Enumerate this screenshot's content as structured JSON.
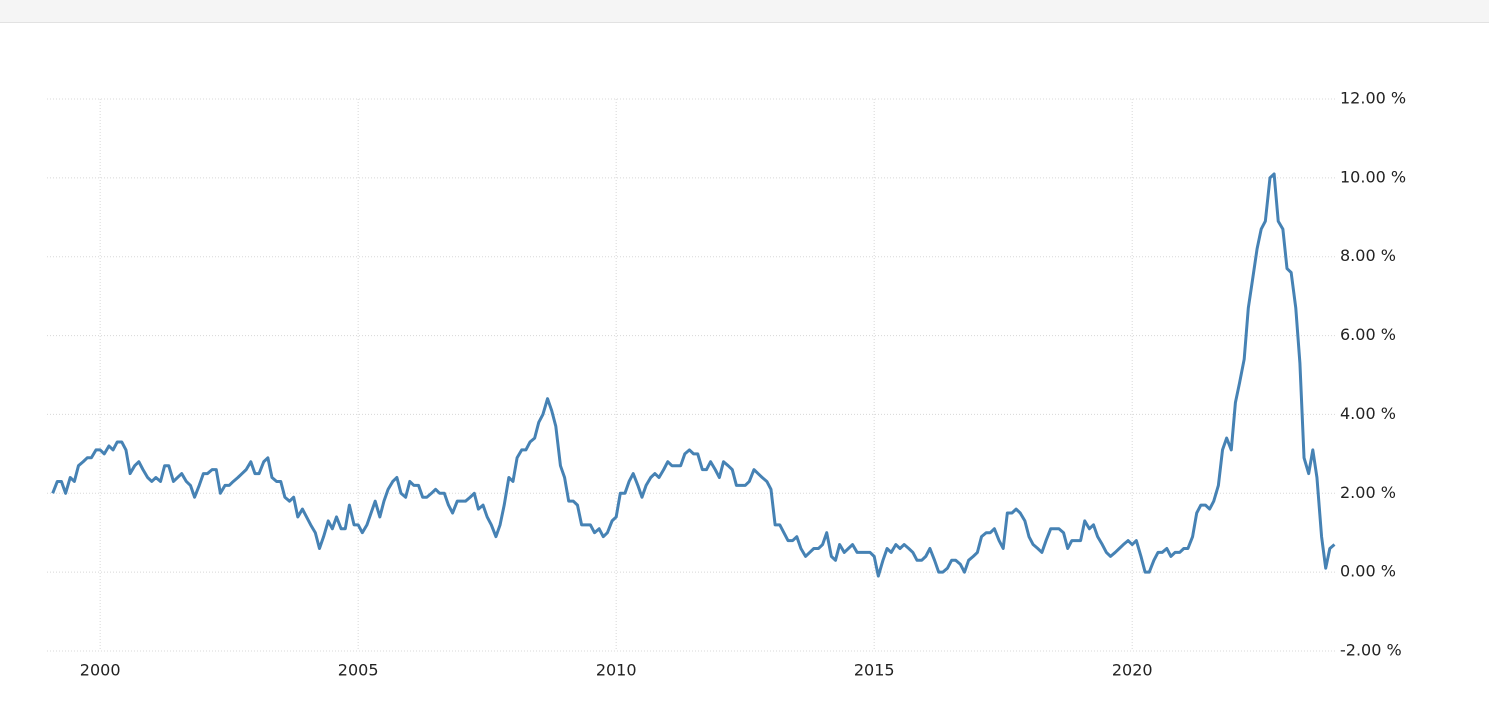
{
  "chart_data": {
    "type": "line",
    "color": "#4682b4",
    "grid": true,
    "xlim": [
      1998.97,
      2023.93
    ],
    "xticks": [
      2000,
      2005,
      2010,
      2015,
      2020
    ],
    "ylim": [
      -2,
      12
    ],
    "yticks": [
      {
        "value": -2,
        "label": "-2.00 %"
      },
      {
        "value": 0,
        "label": "0.00 %"
      },
      {
        "value": 2,
        "label": "2.00 %"
      },
      {
        "value": 4,
        "label": "4.00 %"
      },
      {
        "value": 6,
        "label": "6.00 %"
      },
      {
        "value": 8,
        "label": "8.00 %"
      },
      {
        "value": 10,
        "label": "10.00 %"
      },
      {
        "value": 12,
        "label": "12.00 %"
      }
    ],
    "x": [
      1999.08,
      1999.17,
      1999.25,
      1999.33,
      1999.42,
      1999.5,
      1999.58,
      1999.67,
      1999.75,
      1999.83,
      1999.92,
      2000,
      2000.08,
      2000.17,
      2000.25,
      2000.33,
      2000.42,
      2000.5,
      2000.58,
      2000.67,
      2000.75,
      2000.83,
      2000.92,
      2001,
      2001.08,
      2001.17,
      2001.25,
      2001.33,
      2001.42,
      2001.5,
      2001.58,
      2001.67,
      2001.75,
      2001.83,
      2001.92,
      2002,
      2002.08,
      2002.17,
      2002.25,
      2002.33,
      2002.42,
      2002.5,
      2002.58,
      2002.67,
      2002.75,
      2002.83,
      2002.92,
      2003,
      2003.08,
      2003.17,
      2003.25,
      2003.33,
      2003.42,
      2003.5,
      2003.58,
      2003.67,
      2003.75,
      2003.83,
      2003.92,
      2004,
      2004.08,
      2004.17,
      2004.25,
      2004.33,
      2004.42,
      2004.5,
      2004.58,
      2004.67,
      2004.75,
      2004.83,
      2004.92,
      2005,
      2005.08,
      2005.17,
      2005.25,
      2005.33,
      2005.42,
      2005.5,
      2005.58,
      2005.67,
      2005.75,
      2005.83,
      2005.92,
      2006,
      2006.08,
      2006.17,
      2006.25,
      2006.33,
      2006.42,
      2006.5,
      2006.58,
      2006.67,
      2006.75,
      2006.83,
      2006.92,
      2007,
      2007.08,
      2007.17,
      2007.25,
      2007.33,
      2007.42,
      2007.5,
      2007.58,
      2007.67,
      2007.75,
      2007.83,
      2007.92,
      2008,
      2008.08,
      2008.17,
      2008.25,
      2008.33,
      2008.42,
      2008.5,
      2008.58,
      2008.67,
      2008.75,
      2008.83,
      2008.92,
      2009,
      2009.08,
      2009.17,
      2009.25,
      2009.33,
      2009.42,
      2009.5,
      2009.58,
      2009.67,
      2009.75,
      2009.83,
      2009.92,
      2010,
      2010.08,
      2010.17,
      2010.25,
      2010.33,
      2010.42,
      2010.5,
      2010.58,
      2010.67,
      2010.75,
      2010.83,
      2010.92,
      2011,
      2011.08,
      2011.17,
      2011.25,
      2011.33,
      2011.42,
      2011.5,
      2011.58,
      2011.67,
      2011.75,
      2011.83,
      2011.92,
      2012,
      2012.08,
      2012.17,
      2012.25,
      2012.33,
      2012.42,
      2012.5,
      2012.58,
      2012.67,
      2012.75,
      2012.83,
      2012.92,
      2013,
      2013.08,
      2013.17,
      2013.25,
      2013.33,
      2013.42,
      2013.5,
      2013.58,
      2013.67,
      2013.75,
      2013.83,
      2013.92,
      2014,
      2014.08,
      2014.17,
      2014.25,
      2014.33,
      2014.42,
      2014.5,
      2014.58,
      2014.67,
      2014.75,
      2014.83,
      2014.92,
      2015,
      2015.08,
      2015.17,
      2015.25,
      2015.33,
      2015.42,
      2015.5,
      2015.58,
      2015.67,
      2015.75,
      2015.83,
      2015.92,
      2016,
      2016.08,
      2016.17,
      2016.25,
      2016.33,
      2016.42,
      2016.5,
      2016.58,
      2016.67,
      2016.75,
      2016.83,
      2016.92,
      2017,
      2017.08,
      2017.17,
      2017.25,
      2017.33,
      2017.42,
      2017.5,
      2017.58,
      2017.67,
      2017.75,
      2017.83,
      2017.92,
      2018,
      2018.08,
      2018.17,
      2018.25,
      2018.33,
      2018.42,
      2018.5,
      2018.58,
      2018.67,
      2018.75,
      2018.83,
      2018.92,
      2019,
      2019.08,
      2019.17,
      2019.25,
      2019.33,
      2019.42,
      2019.5,
      2019.58,
      2019.67,
      2019.75,
      2019.83,
      2019.92,
      2020,
      2020.08,
      2020.17,
      2020.25,
      2020.33,
      2020.42,
      2020.5,
      2020.58,
      2020.67,
      2020.75,
      2020.83,
      2020.92,
      2021,
      2021.08,
      2021.17,
      2021.25,
      2021.33,
      2021.42,
      2021.5,
      2021.58,
      2021.67,
      2021.75,
      2021.83,
      2021.92,
      2022,
      2022.08,
      2022.17,
      2022.25,
      2022.33,
      2022.42,
      2022.5,
      2022.58,
      2022.67,
      2022.75,
      2022.83,
      2022.92,
      2023,
      2023.08,
      2023.17,
      2023.25,
      2023.33,
      2023.42,
      2023.5,
      2023.58,
      2023.67,
      2023.75,
      2023.83,
      2023.92
    ],
    "values": [
      2.0,
      2.3,
      2.3,
      2.0,
      2.4,
      2.3,
      2.7,
      2.8,
      2.9,
      2.9,
      3.1,
      3.1,
      3.0,
      3.2,
      3.1,
      3.3,
      3.3,
      3.1,
      2.5,
      2.7,
      2.8,
      2.6,
      2.4,
      2.3,
      2.4,
      2.3,
      2.7,
      2.7,
      2.3,
      2.4,
      2.5,
      2.3,
      2.2,
      1.9,
      2.2,
      2.5,
      2.5,
      2.6,
      2.6,
      2.0,
      2.2,
      2.2,
      2.3,
      2.4,
      2.5,
      2.6,
      2.8,
      2.5,
      2.5,
      2.8,
      2.9,
      2.4,
      2.3,
      2.3,
      1.9,
      1.8,
      1.9,
      1.4,
      1.6,
      1.4,
      1.2,
      1.0,
      0.6,
      0.9,
      1.3,
      1.1,
      1.4,
      1.1,
      1.1,
      1.7,
      1.2,
      1.2,
      1.0,
      1.2,
      1.5,
      1.8,
      1.4,
      1.8,
      2.1,
      2.3,
      2.4,
      2.0,
      1.9,
      2.3,
      2.2,
      2.2,
      1.9,
      1.9,
      2.0,
      2.1,
      2.0,
      2.0,
      1.7,
      1.5,
      1.8,
      1.8,
      1.8,
      1.9,
      2.0,
      1.6,
      1.7,
      1.4,
      1.2,
      0.9,
      1.2,
      1.7,
      2.4,
      2.3,
      2.9,
      3.1,
      3.1,
      3.3,
      3.4,
      3.8,
      4.0,
      4.4,
      4.1,
      3.7,
      2.7,
      2.4,
      1.8,
      1.8,
      1.7,
      1.2,
      1.2,
      1.2,
      1.0,
      1.1,
      0.9,
      1.0,
      1.3,
      1.4,
      2.0,
      2.0,
      2.3,
      2.5,
      2.2,
      1.9,
      2.2,
      2.4,
      2.5,
      2.4,
      2.6,
      2.8,
      2.7,
      2.7,
      2.7,
      3.0,
      3.1,
      3.0,
      3.0,
      2.6,
      2.6,
      2.8,
      2.6,
      2.4,
      2.8,
      2.7,
      2.6,
      2.2,
      2.2,
      2.2,
      2.3,
      2.6,
      2.5,
      2.4,
      2.3,
      2.1,
      1.2,
      1.2,
      1.0,
      0.8,
      0.8,
      0.9,
      0.6,
      0.4,
      0.5,
      0.6,
      0.6,
      0.7,
      1.0,
      0.4,
      0.3,
      0.7,
      0.5,
      0.6,
      0.7,
      0.5,
      0.5,
      0.5,
      0.5,
      0.4,
      -0.1,
      0.3,
      0.6,
      0.5,
      0.7,
      0.6,
      0.7,
      0.6,
      0.5,
      0.3,
      0.3,
      0.4,
      0.6,
      0.3,
      0.0,
      0.0,
      0.1,
      0.3,
      0.3,
      0.2,
      0.0,
      0.3,
      0.4,
      0.5,
      0.9,
      1.0,
      1.0,
      1.1,
      0.8,
      0.6,
      1.5,
      1.5,
      1.6,
      1.5,
      1.3,
      0.9,
      0.7,
      0.6,
      0.5,
      0.8,
      1.1,
      1.1,
      1.1,
      1.0,
      0.6,
      0.8,
      0.8,
      0.8,
      1.3,
      1.1,
      1.2,
      0.9,
      0.7,
      0.5,
      0.4,
      0.5,
      0.6,
      0.7,
      0.8,
      0.7,
      0.8,
      0.4,
      0.0,
      0.0,
      0.3,
      0.5,
      0.5,
      0.6,
      0.4,
      0.5,
      0.5,
      0.6,
      0.6,
      0.9,
      1.5,
      1.7,
      1.7,
      1.6,
      1.8,
      2.2,
      3.1,
      3.4,
      3.1,
      4.3,
      4.8,
      5.4,
      6.7,
      7.4,
      8.2,
      8.7,
      8.9,
      10.0,
      10.1,
      8.9,
      8.7,
      7.7,
      7.6,
      6.7,
      5.3,
      2.9,
      2.5,
      3.1,
      2.4,
      0.9,
      0.1,
      0.6,
      0.7
    ]
  }
}
